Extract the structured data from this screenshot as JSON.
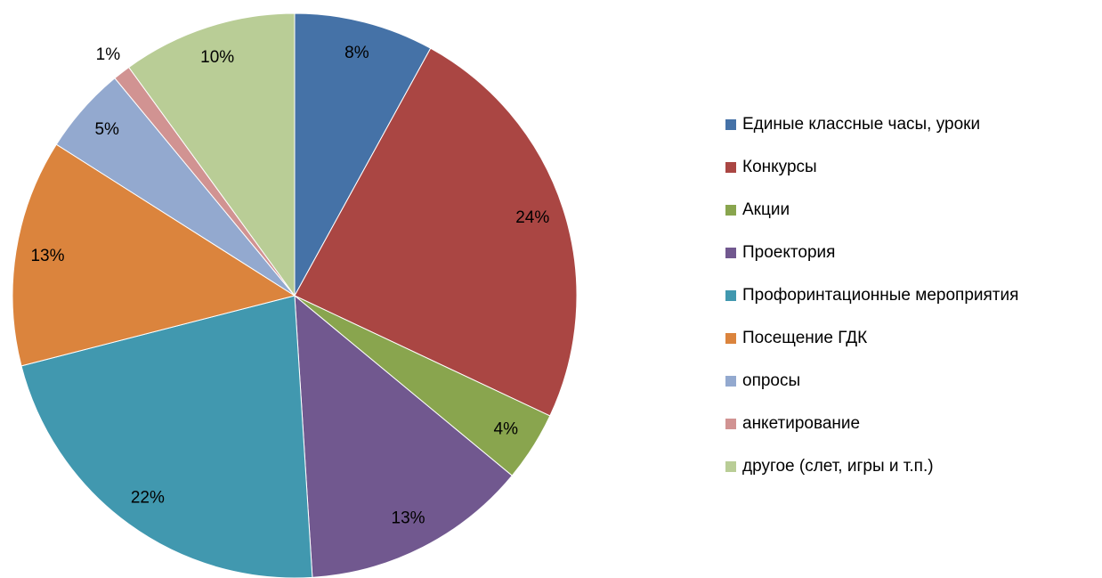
{
  "chart_data": {
    "type": "pie",
    "categories": [
      "Единые классные часы, уроки",
      "Конкурсы",
      "Акции",
      "Проектория",
      "Профоринтационные мероприятия",
      "Посещение ГДК",
      "опросы",
      "анкетирование",
      "другое (слет, игры и т.п.)"
    ],
    "values": [
      8,
      24,
      4,
      13,
      22,
      13,
      5,
      1,
      10
    ],
    "value_labels": [
      "8%",
      "24%",
      "4%",
      "13%",
      "22%",
      "13%",
      "5%",
      "1%",
      "10%"
    ],
    "colors": [
      "#4572a7",
      "#aa4643",
      "#89a54e",
      "#71588f",
      "#4198af",
      "#db843d",
      "#93a9cf",
      "#d19392",
      "#b9cd96"
    ],
    "legend": "right"
  }
}
